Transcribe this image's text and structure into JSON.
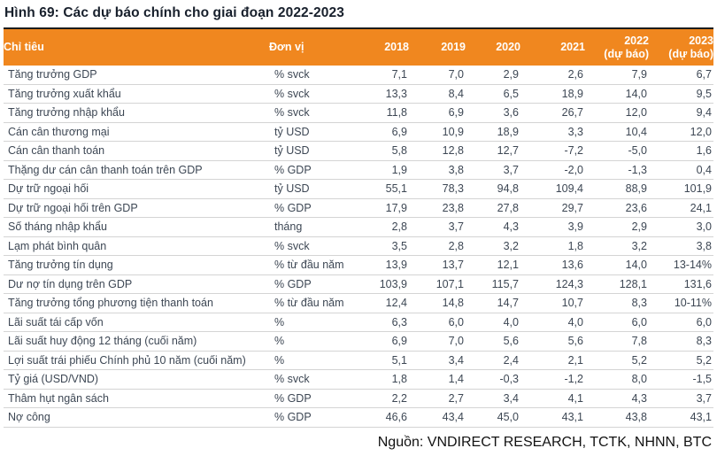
{
  "title": "Hình 69: Các dự báo chính cho giai đoạn 2022-2023",
  "source": "Nguồn: VNDIRECT RESEARCH, TCTK, NHNN, BTC",
  "colors": {
    "header_bg": "#f0871f",
    "header_text": "#ffffff",
    "header_top_border": "#1c1c1c",
    "body_text": "#3d4754",
    "row_separator": "#d4d4d4",
    "title_text": "#18202c"
  },
  "table": {
    "header": {
      "indicator": "Chỉ tiêu",
      "unit": "Đơn vị",
      "years": [
        "2018",
        "2019",
        "2020",
        "2021"
      ],
      "forecast_years": [
        "2022",
        "2023"
      ],
      "forecast_note": "(dự báo)"
    },
    "rows": [
      {
        "label": "Tăng trưởng GDP",
        "unit": "% svck",
        "values": [
          "7,1",
          "7,0",
          "2,9",
          "2,6",
          "7,9",
          "6,7"
        ]
      },
      {
        "label": "Tăng trưởng xuất khẩu",
        "unit": "% svck",
        "values": [
          "13,3",
          "8,4",
          "6,5",
          "18,9",
          "14,0",
          "9,5"
        ]
      },
      {
        "label": "Tăng trưởng nhập khẩu",
        "unit": "% svck",
        "values": [
          "11,8",
          "6,9",
          "3,6",
          "26,7",
          "12,0",
          "9,4"
        ]
      },
      {
        "label": "Cán cân thương mại",
        "unit": "tỷ USD",
        "values": [
          "6,9",
          "10,9",
          "18,9",
          "3,3",
          "10,4",
          "12,0"
        ]
      },
      {
        "label": "Cán cân thanh toán",
        "unit": "tỷ USD",
        "values": [
          "5,8",
          "12,8",
          "12,7",
          "-7,2",
          "-5,0",
          "1,6"
        ]
      },
      {
        "label": "Thặng dư cán cân thanh toán trên GDP",
        "unit": "% GDP",
        "values": [
          "1,9",
          "3,8",
          "3,7",
          "-2,0",
          "-1,3",
          "0,4"
        ]
      },
      {
        "label": "Dự trữ ngoại hối",
        "unit": "tỷ USD",
        "values": [
          "55,1",
          "78,3",
          "94,8",
          "109,4",
          "88,9",
          "101,9"
        ]
      },
      {
        "label": "Dự trữ ngoại hối trên GDP",
        "unit": "% GDP",
        "values": [
          "17,9",
          "23,8",
          "27,8",
          "29,7",
          "23,6",
          "24,1"
        ]
      },
      {
        "label": "Số tháng nhập khẩu",
        "unit": "tháng",
        "values": [
          "2,8",
          "3,7",
          "4,3",
          "3,9",
          "2,9",
          "3,0"
        ]
      },
      {
        "label": "Lạm phát bình quân",
        "unit": "% svck",
        "values": [
          "3,5",
          "2,8",
          "3,2",
          "1,8",
          "3,2",
          "3,8"
        ]
      },
      {
        "label": "Tăng trưởng tín dụng",
        "unit": "% từ đầu năm",
        "values": [
          "13,9",
          "13,7",
          "12,1",
          "13,6",
          "14,0",
          "13-14%"
        ]
      },
      {
        "label": "Dư nợ tín dụng trên GDP",
        "unit": "% GDP",
        "values": [
          "103,9",
          "107,1",
          "115,7",
          "124,3",
          "128,1",
          "131,6"
        ]
      },
      {
        "label": "Tăng trưởng tổng phương tiện thanh toán",
        "unit": "% từ đầu năm",
        "values": [
          "12,4",
          "14,8",
          "14,7",
          "10,7",
          "8,3",
          "10-11%"
        ]
      },
      {
        "label": "Lãi suất tái cấp vốn",
        "unit": "%",
        "values": [
          "6,3",
          "6,0",
          "4,0",
          "4,0",
          "6,0",
          "6,0"
        ]
      },
      {
        "label": "Lãi suất huy động 12 tháng (cuối năm)",
        "unit": "%",
        "values": [
          "6,9",
          "7,0",
          "5,6",
          "5,6",
          "7,8",
          "8,3"
        ]
      },
      {
        "label": "Lợi suất trái phiếu Chính phủ 10 năm (cuối năm)",
        "unit": "%",
        "values": [
          "5,1",
          "3,4",
          "2,4",
          "2,1",
          "5,2",
          "5,2"
        ]
      },
      {
        "label": "Tỷ giá (USD/VND)",
        "unit": "% svck",
        "values": [
          "1,8",
          "1,4",
          "-0,3",
          "-1,2",
          "8,0",
          "-1,5"
        ]
      },
      {
        "label": "Thâm hụt ngân sách",
        "unit": "% GDP",
        "values": [
          "2,2",
          "2,7",
          "3,4",
          "4,1",
          "4,3",
          "3,7"
        ]
      },
      {
        "label": "Nợ công",
        "unit": "% GDP",
        "values": [
          "46,6",
          "43,4",
          "45,0",
          "43,1",
          "43,8",
          "43,1"
        ]
      }
    ]
  }
}
